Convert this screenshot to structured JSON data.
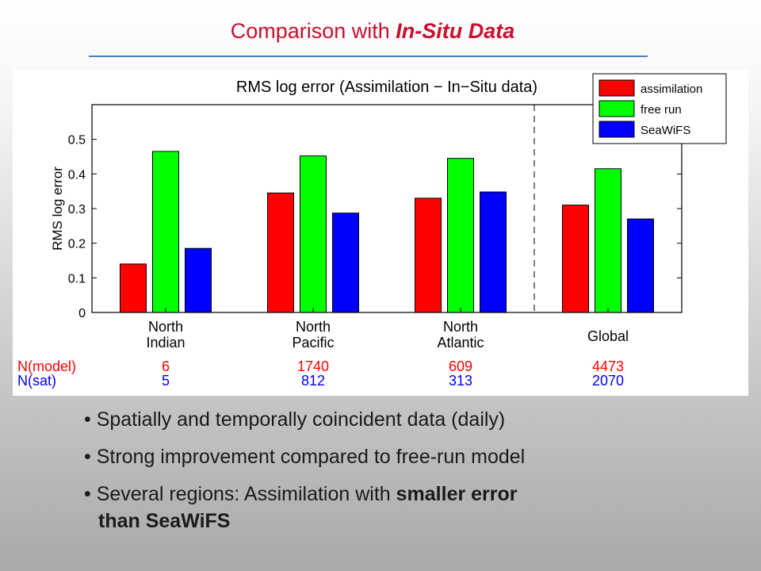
{
  "slide": {
    "title_prefix": "Comparison with ",
    "title_emphasis": "In-Situ Data",
    "bullets": [
      {
        "text": "• Spatially and temporally coincident data (daily)"
      },
      {
        "text": "• Strong improvement compared to free-run model"
      },
      {
        "text_plain": "• Several regions: Assimilation with ",
        "text_bold": "smaller error",
        "line2_bold": "than SeaWiFS"
      }
    ]
  },
  "chart_data": {
    "type": "bar",
    "title": "RMS log error (Assimilation − In−Situ data)",
    "xlabel": "",
    "ylabel": "RMS log error",
    "ylim": [
      0,
      0.6
    ],
    "yticks": [
      "0",
      "0.1",
      "0.2",
      "0.3",
      "0.4",
      "0.5"
    ],
    "categories": [
      {
        "line1": "North",
        "line2": "Indian"
      },
      {
        "line1": "North",
        "line2": "Pacific"
      },
      {
        "line1": "North",
        "line2": "Atlantic"
      },
      {
        "line1": "",
        "line2": "Global"
      }
    ],
    "series": [
      {
        "name": "assimilation",
        "color": "#ff0000",
        "values": [
          0.14,
          0.345,
          0.33,
          0.31
        ]
      },
      {
        "name": "free run",
        "color": "#00ff00",
        "values": [
          0.465,
          0.452,
          0.445,
          0.415
        ]
      },
      {
        "name": "SeaWiFS",
        "color": "#0000ff",
        "values": [
          0.185,
          0.287,
          0.348,
          0.27
        ]
      }
    ],
    "legend_position": "top-right",
    "separator": "dashed line between North Atlantic and Global",
    "counts": [
      {
        "label": "N(model)",
        "color": "#ff0000",
        "values": [
          "6",
          "1740",
          "609",
          "4473"
        ]
      },
      {
        "label": "N(sat)",
        "color": "#0000ff",
        "values": [
          "5",
          "812",
          "313",
          "2070"
        ]
      }
    ]
  }
}
